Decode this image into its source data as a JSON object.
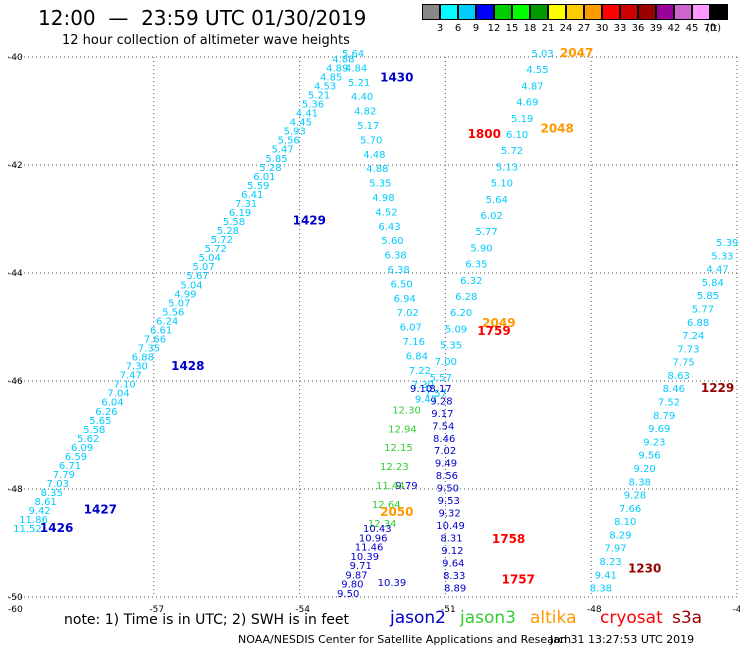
{
  "header": {
    "title": "12:00  —  23:59 UTC 01/30/2019",
    "subtitle": "12 hour collection of altimeter wave heights"
  },
  "colorbar": {
    "colors": [
      "#888888",
      "#00ffff",
      "#00ccff",
      "#0000ff",
      "#00cc00",
      "#00ff00",
      "#009900",
      "#ffff00",
      "#ffcc00",
      "#ff9900",
      "#ff0000",
      "#cc0000",
      "#990000",
      "#990099",
      "#cc66cc",
      "#ff99ff",
      "#000000"
    ],
    "labels": [
      "3",
      "6",
      "9",
      "12",
      "15",
      "18",
      "21",
      "24",
      "27",
      "30",
      "33",
      "36",
      "39",
      "42",
      "45",
      "70"
    ],
    "unit": "(ft)"
  },
  "map": {
    "lon_range": [
      -60,
      -45
    ],
    "lat_range": [
      -50,
      -40
    ],
    "lon_tick_labels": [
      "-57",
      "-54",
      "-51",
      "-48",
      "-45"
    ],
    "lat_tick_labels": [
      "-40",
      "-42",
      "-44",
      "-46",
      "-48",
      "-50"
    ],
    "corner_label": "-60",
    "grid": "dotted",
    "colors": {
      "jason2": "#0000cc",
      "jason3": "#33cc33",
      "altika": "#ff9900",
      "cryosat": "#ff0000",
      "s3a": "#990000",
      "obs": "#00ccff"
    },
    "tracks": [
      {
        "name": "track-1426-1428",
        "sat": "obs",
        "lon0": -59.6,
        "lat0": -48.8,
        "lon1": -53.1,
        "lat1": -40.1,
        "values": [
          "11.52",
          "11.86",
          "9.42",
          "8.61",
          "8.35",
          "7.03",
          "7.79",
          "6.71",
          "6.59",
          "6.09",
          "5.62",
          "5.58",
          "5.65",
          "6.26",
          "6.04",
          "7.04",
          "7.10",
          "7.47",
          "7.30",
          "6.88",
          "7.35",
          "7.66",
          "6.61",
          "6.24",
          "5.56",
          "5.07",
          "4.99",
          "5.04",
          "5.67",
          "5.07",
          "5.04",
          "5.72",
          "5.72",
          "5.28",
          "5.58",
          "6.19",
          "7.31",
          "6.41",
          "5.59",
          "6.01",
          "5.28",
          "5.85",
          "5.47",
          "5.56",
          "5.93",
          "4.45",
          "4.41",
          "5.36",
          "5.21",
          "4.53",
          "4.85",
          "4.89",
          "4.88"
        ]
      },
      {
        "name": "track-1430",
        "sat": "obs",
        "lon0": -51.4,
        "lat0": -46.4,
        "lon1": -52.9,
        "lat1": -40.0,
        "values": [
          "9.47",
          "7.30",
          "7.22",
          "6.84",
          "7.16",
          "6.07",
          "7.02",
          "6.94",
          "6.50",
          "6.38",
          "6.38",
          "5.60",
          "6.43",
          "4.52",
          "4.98",
          "5.35",
          "4.88",
          "4.48",
          "5.70",
          "5.17",
          "4.82",
          "4.40",
          "5.21",
          "4.84",
          "5.64"
        ]
      },
      {
        "name": "track-2047-2048-2049",
        "sat": "obs",
        "lon0": -51.2,
        "lat0": -46.3,
        "lon1": -49.0,
        "lat1": -40.0,
        "values": [
          "7.57",
          "5.57",
          "7.00",
          "5.35",
          "5.09",
          "6.20",
          "6.28",
          "6.32",
          "6.35",
          "5.90",
          "5.77",
          "6.02",
          "5.64",
          "5.10",
          "5.13",
          "5.72",
          "6.10",
          "5.19",
          "4.69",
          "4.87",
          "4.55",
          "5.03"
        ]
      },
      {
        "name": "track-jason2-south",
        "sat": "jason2",
        "lon0": -51.5,
        "lat0": -46.2,
        "lon1": -52.1,
        "lat1": -49.8,
        "values": [
          "9.10",
          "9.79",
          "10.39"
        ]
      },
      {
        "name": "track-jason3",
        "sat": "jason3",
        "lon0": -51.8,
        "lat0": -46.6,
        "lon1": -52.3,
        "lat1": -48.7,
        "values": [
          "12.30",
          "12.94",
          "12.15",
          "12.23",
          "11.44",
          "12.64",
          "12.34"
        ]
      },
      {
        "name": "track-jason2-2050",
        "sat": "jason2",
        "lon0": -52.4,
        "lat0": -48.8,
        "lon1": -53.0,
        "lat1": -50.0,
        "values": [
          "10.43",
          "10.96",
          "11.46",
          "10.39",
          "9.71",
          "9.87",
          "9.80",
          "9.50"
        ]
      },
      {
        "name": "track-1757-1758",
        "sat": "jason2",
        "lon0": -51.1,
        "lat0": -46.2,
        "lon1": -50.8,
        "lat1": -49.9,
        "values": [
          "8.17",
          "9.28",
          "9.17",
          "7.54",
          "8.46",
          "7.02",
          "9.49",
          "8.56",
          "9.50",
          "9.53",
          "9.32",
          "10.49",
          "8.31",
          "9.12",
          "9.64",
          "8.33",
          "8.89"
        ]
      },
      {
        "name": "track-1229-1230",
        "sat": "obs",
        "lon0": -47.8,
        "lat0": -49.9,
        "lon1": -45.2,
        "lat1": -43.5,
        "values": [
          "8.38",
          "9.41",
          "8.23",
          "7.97",
          "8.29",
          "8.10",
          "7.66",
          "9.28",
          "8.38",
          "9.20",
          "9.56",
          "9.23",
          "9.69",
          "8.79",
          "7.52",
          "8.46",
          "8.63",
          "7.75",
          "7.73",
          "7.24",
          "6.88",
          "5.77",
          "5.85",
          "5.84",
          "4.47",
          "5.33",
          "5.39"
        ]
      }
    ],
    "labels": [
      {
        "text": "1426",
        "lon": -59.0,
        "lat": -48.8,
        "sat": "jason2"
      },
      {
        "text": "1427",
        "lon": -58.1,
        "lat": -48.45,
        "sat": "jason2"
      },
      {
        "text": "1428",
        "lon": -56.3,
        "lat": -45.8,
        "sat": "jason2"
      },
      {
        "text": "1429",
        "lon": -53.8,
        "lat": -43.1,
        "sat": "jason2"
      },
      {
        "text": "1430",
        "lon": -52.0,
        "lat": -40.45,
        "sat": "jason2"
      },
      {
        "text": "1800",
        "lon": -50.2,
        "lat": -41.5,
        "sat": "cryosat"
      },
      {
        "text": "2047",
        "lon": -48.3,
        "lat": -40.0,
        "sat": "altika"
      },
      {
        "text": "2048",
        "lon": -48.7,
        "lat": -41.4,
        "sat": "altika"
      },
      {
        "text": "2049",
        "lon": -49.9,
        "lat": -45.0,
        "sat": "altika"
      },
      {
        "text": "1759",
        "lon": -50.0,
        "lat": -45.15,
        "sat": "cryosat"
      },
      {
        "text": "2050",
        "lon": -52.0,
        "lat": -48.5,
        "sat": "altika"
      },
      {
        "text": "1758",
        "lon": -49.7,
        "lat": -49.0,
        "sat": "cryosat"
      },
      {
        "text": "1757",
        "lon": -49.5,
        "lat": -49.75,
        "sat": "cryosat"
      },
      {
        "text": "1230",
        "lon": -46.9,
        "lat": -49.55,
        "sat": "s3a"
      },
      {
        "text": "1229",
        "lon": -45.4,
        "lat": -46.2,
        "sat": "s3a"
      }
    ]
  },
  "footer": {
    "note": "note:  1) Time is in UTC; 2) SWH is in feet",
    "legend": [
      {
        "label": "jason2",
        "color": "#0000cc"
      },
      {
        "label": "jason3",
        "color": "#33cc33"
      },
      {
        "label": "altika",
        "color": "#ff9900"
      },
      {
        "label": "cryosat",
        "color": "#ff0000"
      },
      {
        "label": "s3a",
        "color": "#990000"
      }
    ],
    "credit": "NOAA/NESDIS Center for Satellite Applications and Research",
    "timestamp": "Jan 31 13:27:53 UTC 2019"
  }
}
